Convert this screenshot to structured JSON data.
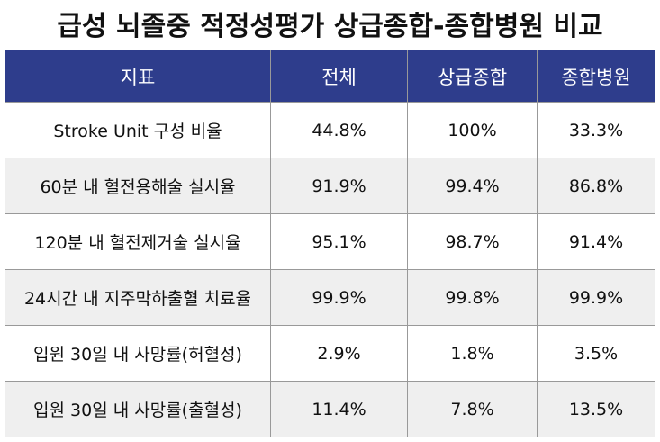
{
  "title": "급성 뇌졸중 적정성평가 상급종합-종합병원 비교",
  "table": {
    "header": [
      "지표",
      "전체",
      "상급종합",
      "종합병원"
    ],
    "rows": [
      [
        "Stroke Unit 구성 비율",
        "44.8%",
        "100%",
        "33.3%"
      ],
      [
        "60분 내 혈전용해술 실시율",
        "91.9%",
        "99.4%",
        "86.8%"
      ],
      [
        "120분 내 혈전제거술 실시율",
        "95.1%",
        "98.7%",
        "91.4%"
      ],
      [
        "24시간 내 지주막하출혈 치료율",
        "99.9%",
        "99.8%",
        "99.9%"
      ],
      [
        "입원 30일 내 사망률(허혈성)",
        "2.9%",
        "1.8%",
        "3.5%"
      ],
      [
        "입원 30일 내 사망률(출혈성)",
        "11.4%",
        "7.8%",
        "13.5%"
      ]
    ]
  }
}
